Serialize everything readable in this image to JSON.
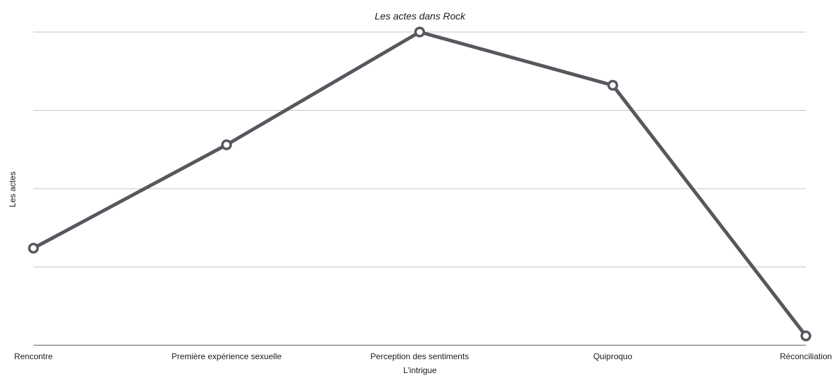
{
  "chart_data": {
    "type": "line",
    "title": "Les actes dans Rock",
    "xlabel": "L’intrigue",
    "ylabel": "Les actes",
    "categories": [
      "Rencontre",
      "Première expérience sexuelle",
      "Perception des sentiments",
      "Quiproquo",
      "Réconciliation"
    ],
    "series": [
      {
        "values": [
          31,
          64,
          100,
          83,
          3
        ]
      }
    ],
    "ylim": [
      0,
      100
    ],
    "y_ticks": [
      0,
      25,
      50,
      75,
      100
    ],
    "y_tick_labels_shown": false,
    "grid": true,
    "legend": "none",
    "colors": {
      "series": "#55585d",
      "grid": "#c4c4c4",
      "baseline": "#555555"
    }
  }
}
